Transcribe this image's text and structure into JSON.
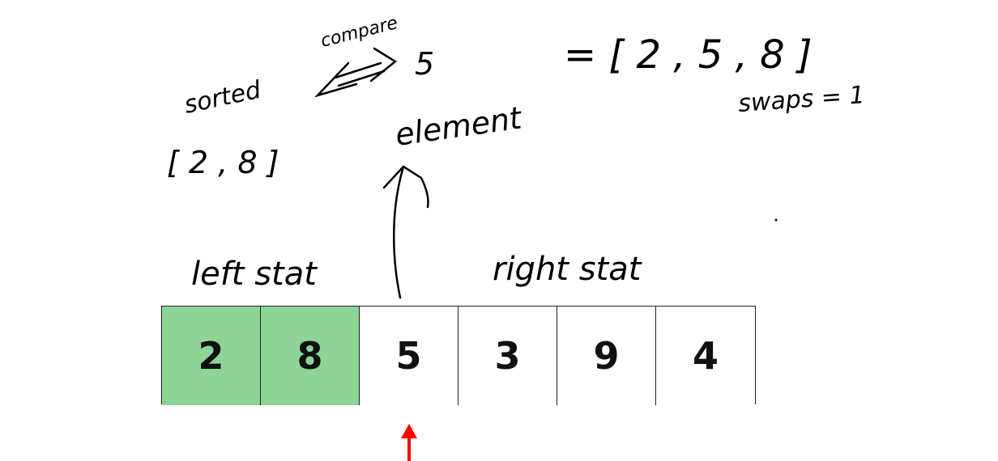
{
  "annotations": {
    "compare_label": "compare",
    "sorted_label": "sorted",
    "compare_target": "5",
    "sorted_subarray": "[ 2 , 8 ]",
    "element_label": "element",
    "result": "= [ 2 , 5 , 8 ]",
    "swaps": "swaps = 1",
    "left_label": "left stat",
    "right_label": "right stat"
  },
  "array": {
    "cells": [
      {
        "value": "2",
        "state": "sorted"
      },
      {
        "value": "8",
        "state": "sorted"
      },
      {
        "value": "5",
        "state": "unsorted"
      },
      {
        "value": "3",
        "state": "unsorted"
      },
      {
        "value": "9",
        "state": "unsorted"
      },
      {
        "value": "4",
        "state": "unsorted"
      }
    ]
  },
  "colors": {
    "sorted_fill": "#8ed496",
    "unsorted_fill": "#ffffff",
    "pointer_arrow": "#ff0000"
  },
  "pointer": {
    "index": 2
  }
}
